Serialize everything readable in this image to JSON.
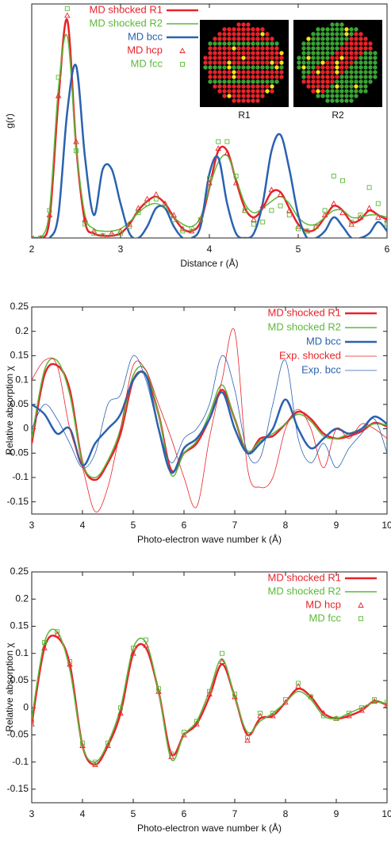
{
  "chart_data": [
    {
      "type": "line",
      "ylabel": "g(r)",
      "xlabel": "Distance r (Å)",
      "xlim": [
        2,
        6
      ],
      "xticks": [
        2,
        3,
        4,
        5,
        6
      ],
      "ylim": [
        0,
        1.02
      ],
      "legend": "upper left",
      "insets": [
        "R1",
        "R2"
      ],
      "x": [
        2.0,
        2.1,
        2.2,
        2.3,
        2.4,
        2.5,
        2.6,
        2.7,
        2.8,
        2.9,
        3.0,
        3.1,
        3.2,
        3.3,
        3.4,
        3.5,
        3.6,
        3.7,
        3.8,
        3.9,
        4.0,
        4.1,
        4.2,
        4.3,
        4.4,
        4.5,
        4.6,
        4.7,
        4.8,
        4.9,
        5.0,
        5.1,
        5.2,
        5.3,
        5.4,
        5.5,
        5.6,
        5.7,
        5.8,
        5.9,
        6.0
      ],
      "series": [
        {
          "name": "MD shocked R1",
          "color": "#e8232a",
          "style": "line",
          "linewidth": 2.5,
          "values": [
            0,
            0,
            0.08,
            0.6,
            0.95,
            0.4,
            0.07,
            0.02,
            0.01,
            0.01,
            0.02,
            0.06,
            0.12,
            0.16,
            0.18,
            0.15,
            0.09,
            0.04,
            0.03,
            0.07,
            0.22,
            0.38,
            0.38,
            0.25,
            0.13,
            0.09,
            0.13,
            0.2,
            0.2,
            0.13,
            0.06,
            0.03,
            0.04,
            0.09,
            0.14,
            0.12,
            0.07,
            0.08,
            0.12,
            0.1,
            0.08
          ]
        },
        {
          "name": "MD shocked R2",
          "color": "#5cb83a",
          "style": "line",
          "linewidth": 1.5,
          "values": [
            0,
            0,
            0.12,
            0.65,
            0.88,
            0.4,
            0.1,
            0.04,
            0.03,
            0.03,
            0.04,
            0.07,
            0.11,
            0.14,
            0.15,
            0.13,
            0.09,
            0.06,
            0.05,
            0.09,
            0.22,
            0.33,
            0.36,
            0.26,
            0.15,
            0.11,
            0.13,
            0.16,
            0.18,
            0.15,
            0.09,
            0.06,
            0.06,
            0.09,
            0.12,
            0.12,
            0.09,
            0.09,
            0.1,
            0.1,
            0.09
          ]
        },
        {
          "name": "MD bcc",
          "color": "#2a62b0",
          "style": "line",
          "linewidth": 2.5,
          "values": [
            0,
            0,
            0,
            0.1,
            0.55,
            0.75,
            0.35,
            0.1,
            0.3,
            0.3,
            0.15,
            0.02,
            0,
            0.05,
            0.13,
            0.13,
            0.05,
            0,
            0,
            0.05,
            0.28,
            0.35,
            0.15,
            0.02,
            0,
            0.02,
            0.15,
            0.38,
            0.45,
            0.3,
            0.1,
            0,
            0,
            0.03,
            0.09,
            0.05,
            0,
            0,
            0.02,
            0.07,
            0.03
          ]
        },
        {
          "name": "MD hcp",
          "color": "#e8232a",
          "style": "markers",
          "marker": "triangle",
          "values": [
            0,
            0,
            0.1,
            0.62,
            0.97,
            0.42,
            0.08,
            0.03,
            0.01,
            0.02,
            0.03,
            0.06,
            0.13,
            0.17,
            0.19,
            0.15,
            0.1,
            0.04,
            0.03,
            0.08,
            0.24,
            0.39,
            0.37,
            0.24,
            0.12,
            0.08,
            0.14,
            0.21,
            0.19,
            0.12,
            0.05,
            0.03,
            0.05,
            0.1,
            0.15,
            0.11,
            0.06,
            0.09,
            0.13,
            0.09,
            0.08
          ]
        },
        {
          "name": "MD fcc",
          "color": "#5cb83a",
          "style": "markers",
          "marker": "square",
          "values": [
            0,
            0,
            0.12,
            0.7,
            1.0,
            0.38,
            0.06,
            0.02,
            0.01,
            0.01,
            0.02,
            0.05,
            0.11,
            0.15,
            0.17,
            0.14,
            0.08,
            0.03,
            0.04,
            0.08,
            0.26,
            0.42,
            0.42,
            0.27,
            0.12,
            0.06,
            0.07,
            0.12,
            0.14,
            0.1,
            0.04,
            0.03,
            0.05,
            0.12,
            0.27,
            0.25,
            0.07,
            0.1,
            0.22,
            0.15,
            0.06
          ]
        }
      ]
    },
    {
      "type": "line",
      "ylabel": "Relative absorption χ",
      "xlabel": "Photo-electron wave number k (Å)",
      "xlim": [
        3,
        10
      ],
      "xticks": [
        3,
        4,
        5,
        6,
        7,
        8,
        9,
        10
      ],
      "ylim": [
        -0.175,
        0.25
      ],
      "yticks": [
        -0.15,
        -0.1,
        -0.05,
        0,
        0.05,
        0.1,
        0.15,
        0.2,
        0.25
      ],
      "legend": "upper right",
      "x": [
        3,
        3.25,
        3.5,
        3.75,
        4,
        4.25,
        4.5,
        4.75,
        5,
        5.25,
        5.5,
        5.75,
        6,
        6.25,
        6.5,
        6.75,
        7,
        7.25,
        7.5,
        7.75,
        8,
        8.25,
        8.5,
        8.75,
        9,
        9.25,
        9.5,
        9.75,
        10
      ],
      "series": [
        {
          "name": "MD shocked R1",
          "color": "#e8232a",
          "style": "line",
          "linewidth": 2.5,
          "values": [
            -0.03,
            0.11,
            0.13,
            0.08,
            -0.07,
            -0.105,
            -0.07,
            -0.01,
            0.1,
            0.11,
            0.03,
            -0.085,
            -0.05,
            -0.03,
            0.02,
            0.08,
            0.02,
            -0.05,
            -0.02,
            -0.015,
            0.01,
            0.035,
            0.02,
            -0.01,
            -0.02,
            -0.015,
            -0.005,
            0.012,
            0.005
          ]
        },
        {
          "name": "MD shocked R2",
          "color": "#5cb83a",
          "style": "line",
          "linewidth": 1.5,
          "values": [
            -0.02,
            0.12,
            0.14,
            0.07,
            -0.07,
            -0.1,
            -0.065,
            0.0,
            0.11,
            0.12,
            0.03,
            -0.095,
            -0.05,
            -0.025,
            0.03,
            0.09,
            0.02,
            -0.045,
            -0.025,
            -0.01,
            0.01,
            0.03,
            0.015,
            -0.015,
            -0.02,
            -0.01,
            0.0,
            0.01,
            0.008
          ]
        },
        {
          "name": "MD bcc",
          "color": "#2a62b0",
          "style": "line",
          "linewidth": 2.5,
          "values": [
            0.05,
            0.03,
            -0.01,
            0.0,
            -0.075,
            -0.03,
            0.0,
            0.03,
            0.1,
            0.11,
            0.0,
            -0.09,
            -0.04,
            -0.02,
            0.02,
            0.075,
            0.0,
            -0.05,
            -0.03,
            0.0,
            0.06,
            0.0,
            -0.04,
            -0.02,
            0.0,
            -0.01,
            0.0,
            0.025,
            0.01
          ]
        },
        {
          "name": "Exp. shocked",
          "color": "#e8232a",
          "style": "line",
          "linewidth": 0.8,
          "values": [
            0.1,
            0.14,
            0.13,
            0.0,
            -0.08,
            -0.17,
            -0.12,
            0.0,
            0.13,
            0.12,
            0.05,
            -0.02,
            -0.1,
            -0.16,
            -0.02,
            0.1,
            0.2,
            -0.08,
            -0.12,
            -0.1,
            0.0,
            0.04,
            0.0,
            -0.08,
            0.0,
            -0.02,
            0.01,
            0.0,
            -0.02
          ]
        },
        {
          "name": "Exp. bcc",
          "color": "#2a62b0",
          "style": "line",
          "linewidth": 0.8,
          "values": [
            0.0,
            0.05,
            0.02,
            -0.03,
            -0.08,
            -0.05,
            0.05,
            0.07,
            0.15,
            0.1,
            0.0,
            -0.07,
            -0.02,
            0.0,
            0.05,
            0.15,
            0.08,
            -0.05,
            -0.06,
            0.05,
            0.14,
            -0.02,
            -0.07,
            -0.03,
            -0.08,
            -0.04,
            -0.01,
            0.02,
            -0.05
          ]
        }
      ]
    },
    {
      "type": "line",
      "ylabel": "Relative absorption χ",
      "xlabel": "Photo-electron wave number k (Å)",
      "xlim": [
        3,
        10
      ],
      "xticks": [
        3,
        4,
        5,
        6,
        7,
        8,
        9,
        10
      ],
      "ylim": [
        -0.175,
        0.25
      ],
      "yticks": [
        -0.15,
        -0.1,
        -0.05,
        0,
        0.05,
        0.1,
        0.15,
        0.2,
        0.25
      ],
      "legend": "upper right",
      "x": [
        3,
        3.25,
        3.5,
        3.75,
        4,
        4.25,
        4.5,
        4.75,
        5,
        5.25,
        5.5,
        5.75,
        6,
        6.25,
        6.5,
        6.75,
        7,
        7.25,
        7.5,
        7.75,
        8,
        8.25,
        8.5,
        8.75,
        9,
        9.25,
        9.5,
        9.75,
        10
      ],
      "series": [
        {
          "name": "MD shocked R1",
          "color": "#e8232a",
          "style": "line",
          "linewidth": 2.5,
          "values": [
            -0.03,
            0.11,
            0.13,
            0.08,
            -0.07,
            -0.105,
            -0.07,
            -0.01,
            0.1,
            0.11,
            0.03,
            -0.085,
            -0.05,
            -0.03,
            0.02,
            0.08,
            0.02,
            -0.05,
            -0.02,
            -0.015,
            0.01,
            0.035,
            0.02,
            -0.01,
            -0.02,
            -0.015,
            -0.005,
            0.012,
            0.005
          ]
        },
        {
          "name": "MD shocked R2",
          "color": "#5cb83a",
          "style": "line",
          "linewidth": 1.5,
          "values": [
            -0.02,
            0.12,
            0.14,
            0.07,
            -0.07,
            -0.1,
            -0.065,
            0.0,
            0.11,
            0.12,
            0.03,
            -0.095,
            -0.05,
            -0.025,
            0.03,
            0.09,
            0.02,
            -0.045,
            -0.025,
            -0.01,
            0.01,
            0.03,
            0.015,
            -0.015,
            -0.02,
            -0.01,
            0.0,
            0.01,
            0.008
          ]
        },
        {
          "name": "MD hcp",
          "color": "#e8232a",
          "style": "markers",
          "marker": "triangle",
          "values": [
            -0.03,
            0.11,
            0.135,
            0.08,
            -0.07,
            -0.105,
            -0.07,
            -0.01,
            0.1,
            0.115,
            0.03,
            -0.09,
            -0.05,
            -0.03,
            0.025,
            0.085,
            0.02,
            -0.06,
            -0.015,
            -0.015,
            0.01,
            0.04,
            0.02,
            -0.01,
            -0.02,
            -0.015,
            -0.005,
            0.012,
            0.005
          ]
        },
        {
          "name": "MD fcc",
          "color": "#5cb83a",
          "style": "markers",
          "marker": "square",
          "values": [
            -0.025,
            0.12,
            0.14,
            0.085,
            -0.065,
            -0.1,
            -0.065,
            0.0,
            0.11,
            0.125,
            0.035,
            -0.085,
            -0.045,
            -0.025,
            0.03,
            0.1,
            0.025,
            -0.055,
            -0.01,
            -0.01,
            0.015,
            0.045,
            0.02,
            -0.015,
            -0.02,
            -0.01,
            0.0,
            0.015,
            0.01
          ]
        }
      ]
    }
  ]
}
